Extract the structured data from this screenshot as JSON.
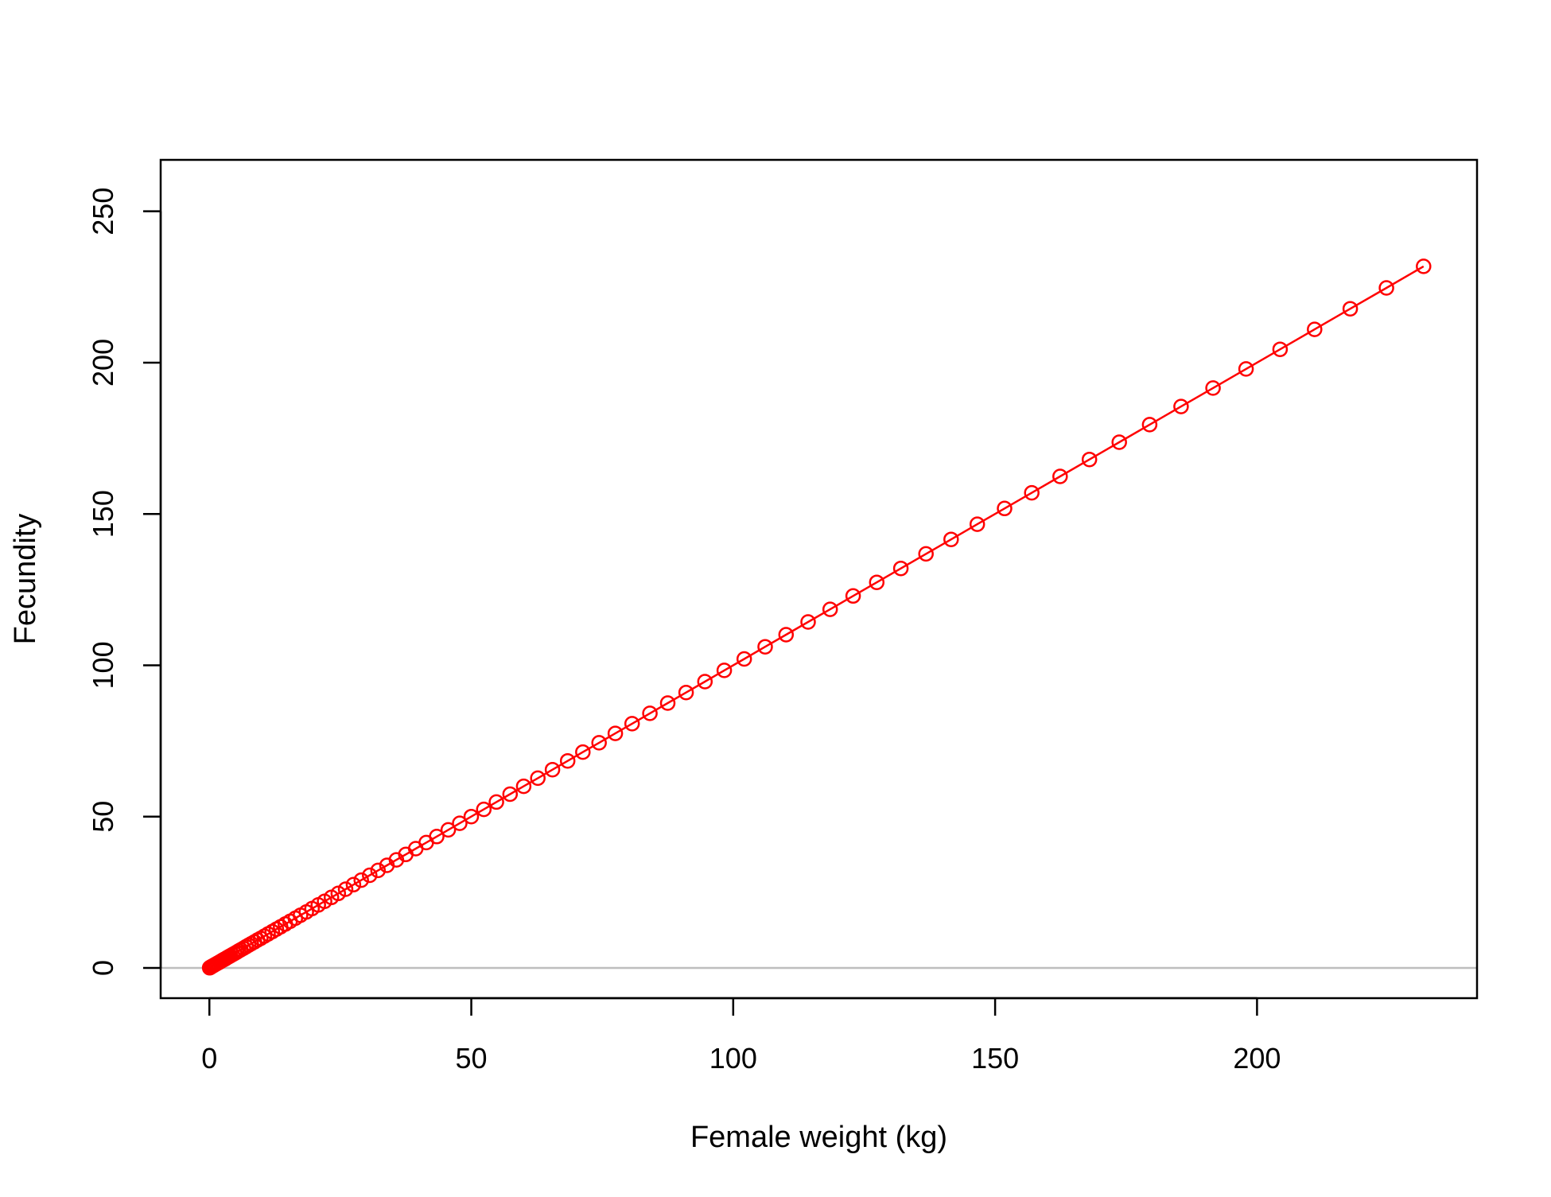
{
  "chart_data": {
    "type": "line",
    "title": "",
    "xlabel": "Female weight (kg)",
    "ylabel": "Fecundity",
    "xlim": [
      -9.3,
      242
    ],
    "ylim": [
      -10,
      267
    ],
    "x_ticks": [
      0,
      50,
      100,
      150,
      200
    ],
    "y_ticks": [
      0,
      50,
      100,
      150,
      200,
      250
    ],
    "x_tick_labels": [
      "0",
      "50",
      "100",
      "150",
      "200"
    ],
    "y_tick_labels": [
      "0",
      "50",
      "100",
      "150",
      "200",
      "250"
    ],
    "reference_line": {
      "y": 0,
      "color": "#bebebe"
    },
    "grid": false,
    "legend": "none",
    "series": [
      {
        "color": "#ff0000",
        "marker": "open-circle",
        "line": true,
        "x": [
          0.05,
          0.15,
          0.3,
          0.5,
          0.75,
          1.0,
          1.3,
          1.6,
          1.9,
          2.2,
          2.5,
          2.8,
          3.1,
          3.4,
          3.7,
          4.0,
          4.4,
          4.8,
          5.2,
          5.6,
          6.0,
          6.5,
          7.0,
          7.5,
          8.0,
          8.6,
          9.2,
          9.8,
          10.5,
          11.2,
          12.0,
          12.8,
          13.6,
          14.5,
          15.4,
          16.4,
          17.4,
          18.5,
          19.6,
          20.8,
          22.0,
          23.3,
          24.6,
          26.0,
          27.5,
          29.0,
          30.6,
          32.2,
          33.9,
          35.7,
          37.5,
          39.4,
          41.4,
          43.4,
          45.6,
          47.8,
          50.0,
          52.4,
          54.8,
          57.4,
          60.0,
          62.7,
          65.5,
          68.4,
          71.3,
          74.4,
          77.5,
          80.7,
          84.1,
          87.5,
          91.0,
          94.6,
          98.3,
          102.1,
          106.1,
          110.1,
          114.3,
          118.5,
          122.9,
          127.4,
          132.0,
          136.8,
          141.6,
          146.6,
          151.8,
          157.0,
          162.4,
          168.0,
          173.7,
          179.5,
          185.5,
          191.6,
          197.9,
          204.4,
          211.0,
          217.8,
          224.7,
          231.8
        ],
        "y": [
          0.05,
          0.15,
          0.3,
          0.5,
          0.75,
          1.0,
          1.3,
          1.6,
          1.9,
          2.2,
          2.5,
          2.8,
          3.1,
          3.4,
          3.7,
          4.0,
          4.4,
          4.8,
          5.2,
          5.6,
          6.0,
          6.5,
          7.0,
          7.5,
          8.0,
          8.6,
          9.2,
          9.8,
          10.5,
          11.2,
          12.0,
          12.8,
          13.6,
          14.5,
          15.4,
          16.4,
          17.4,
          18.5,
          19.6,
          20.8,
          22.0,
          23.3,
          24.6,
          26.0,
          27.5,
          29.0,
          30.6,
          32.2,
          33.9,
          35.7,
          37.5,
          39.4,
          41.4,
          43.4,
          45.6,
          47.8,
          50.0,
          52.4,
          54.8,
          57.4,
          60.0,
          62.7,
          65.5,
          68.4,
          71.3,
          74.4,
          77.5,
          80.7,
          84.1,
          87.5,
          91.0,
          94.6,
          98.3,
          102.1,
          106.1,
          110.1,
          114.3,
          118.5,
          122.9,
          127.4,
          132.0,
          136.8,
          141.6,
          146.6,
          151.8,
          157.0,
          162.4,
          168.0,
          173.7,
          179.5,
          185.5,
          191.6,
          197.9,
          204.4,
          211.0,
          217.8,
          224.7,
          231.8
        ]
      }
    ]
  }
}
